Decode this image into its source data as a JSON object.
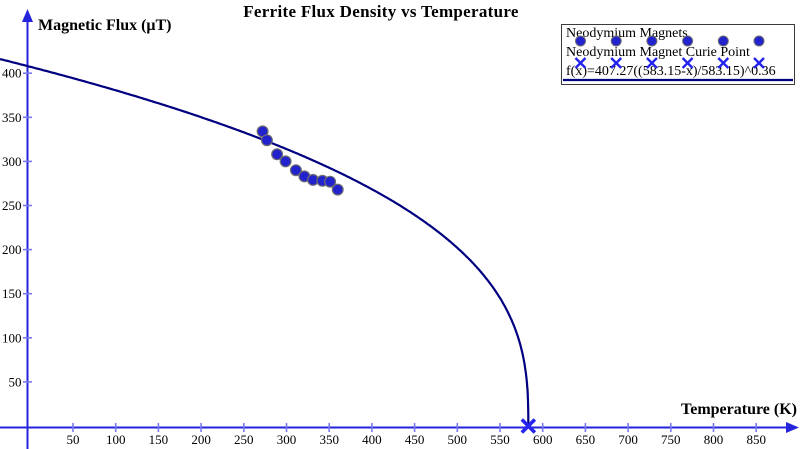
{
  "chart_data": {
    "type": "scatter",
    "title": "Ferrite Flux Density vs Temperature",
    "xlabel": "Temperature (K)",
    "ylabel": "Magnetic Flux (μT)",
    "xlim": [
      -36,
      902
    ],
    "ylim": [
      0,
      470
    ],
    "grid": false,
    "legend_position": "top-right",
    "x_ticks": [
      50,
      100,
      150,
      200,
      250,
      300,
      350,
      400,
      450,
      500,
      550,
      600,
      650,
      700,
      750,
      800,
      850
    ],
    "y_ticks": [
      50,
      100,
      150,
      200,
      250,
      300,
      350,
      400
    ],
    "series": [
      {
        "name": "Neodymium Magnets",
        "type": "scatter",
        "marker": "circle",
        "points": [
          [
            272,
            334
          ],
          [
            277,
            324
          ],
          [
            289,
            308
          ],
          [
            299,
            300
          ],
          [
            311,
            290
          ],
          [
            321,
            283
          ],
          [
            331,
            279
          ],
          [
            342,
            278
          ],
          [
            351,
            277
          ],
          [
            360,
            268
          ]
        ]
      },
      {
        "name": "Neodymium Magnet Curie Point",
        "type": "scatter",
        "marker": "x",
        "points": [
          [
            583.15,
            0
          ]
        ]
      },
      {
        "name": "f(x)=407.27((583.15-x)/583.15)^0.36",
        "type": "function",
        "formula": {
          "amplitude": 407.27,
          "curie_temperature": 583.15,
          "exponent": 0.36
        },
        "domain": [
          -35.5,
          583.15
        ]
      }
    ],
    "colors": {
      "axis": "#2424dd",
      "tick": "#7a7af0",
      "curve": "#000080",
      "point_fill": "#2323cd",
      "point_stroke": "#6e6e6e",
      "cross": "#2424ee",
      "text": "#000000",
      "legend_border": "#3a3a3a"
    }
  }
}
